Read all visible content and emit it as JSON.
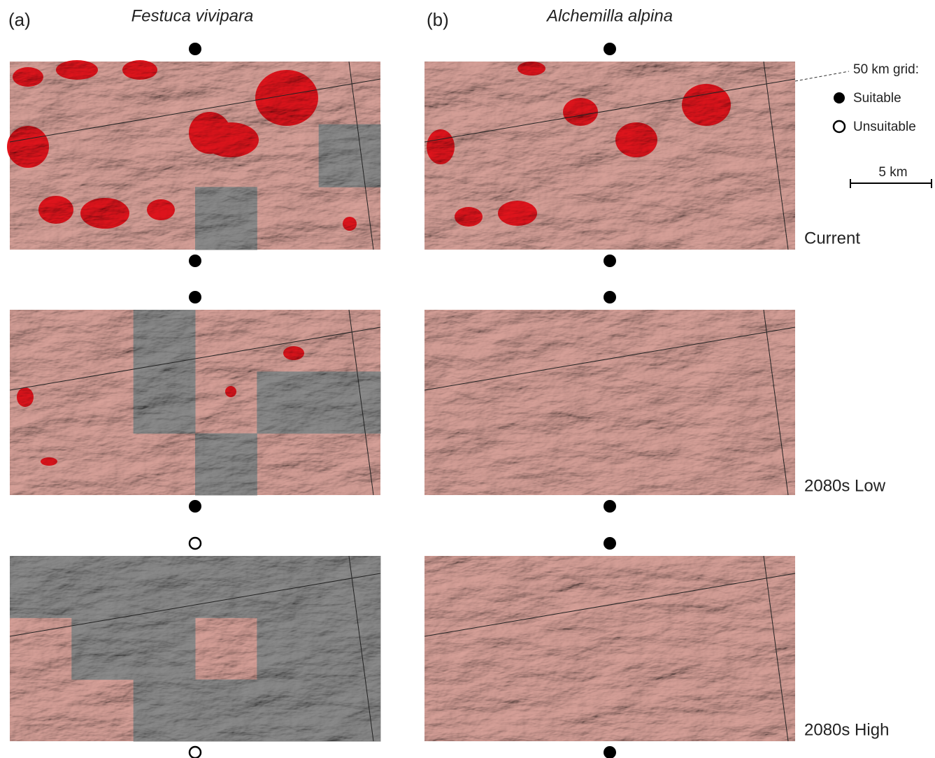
{
  "panels": [
    {
      "label": "(a)",
      "species": "Festuca vivipara"
    },
    {
      "label": "(b)",
      "species": "Alchemilla alpina"
    }
  ],
  "legend": {
    "title": "50 km grid:",
    "suitable": "Suitable",
    "unsuitable": "Unsuitable"
  },
  "scale_bar": "5 km",
  "scenarios": [
    "Current",
    "2080s Low",
    "2080s High"
  ]
}
